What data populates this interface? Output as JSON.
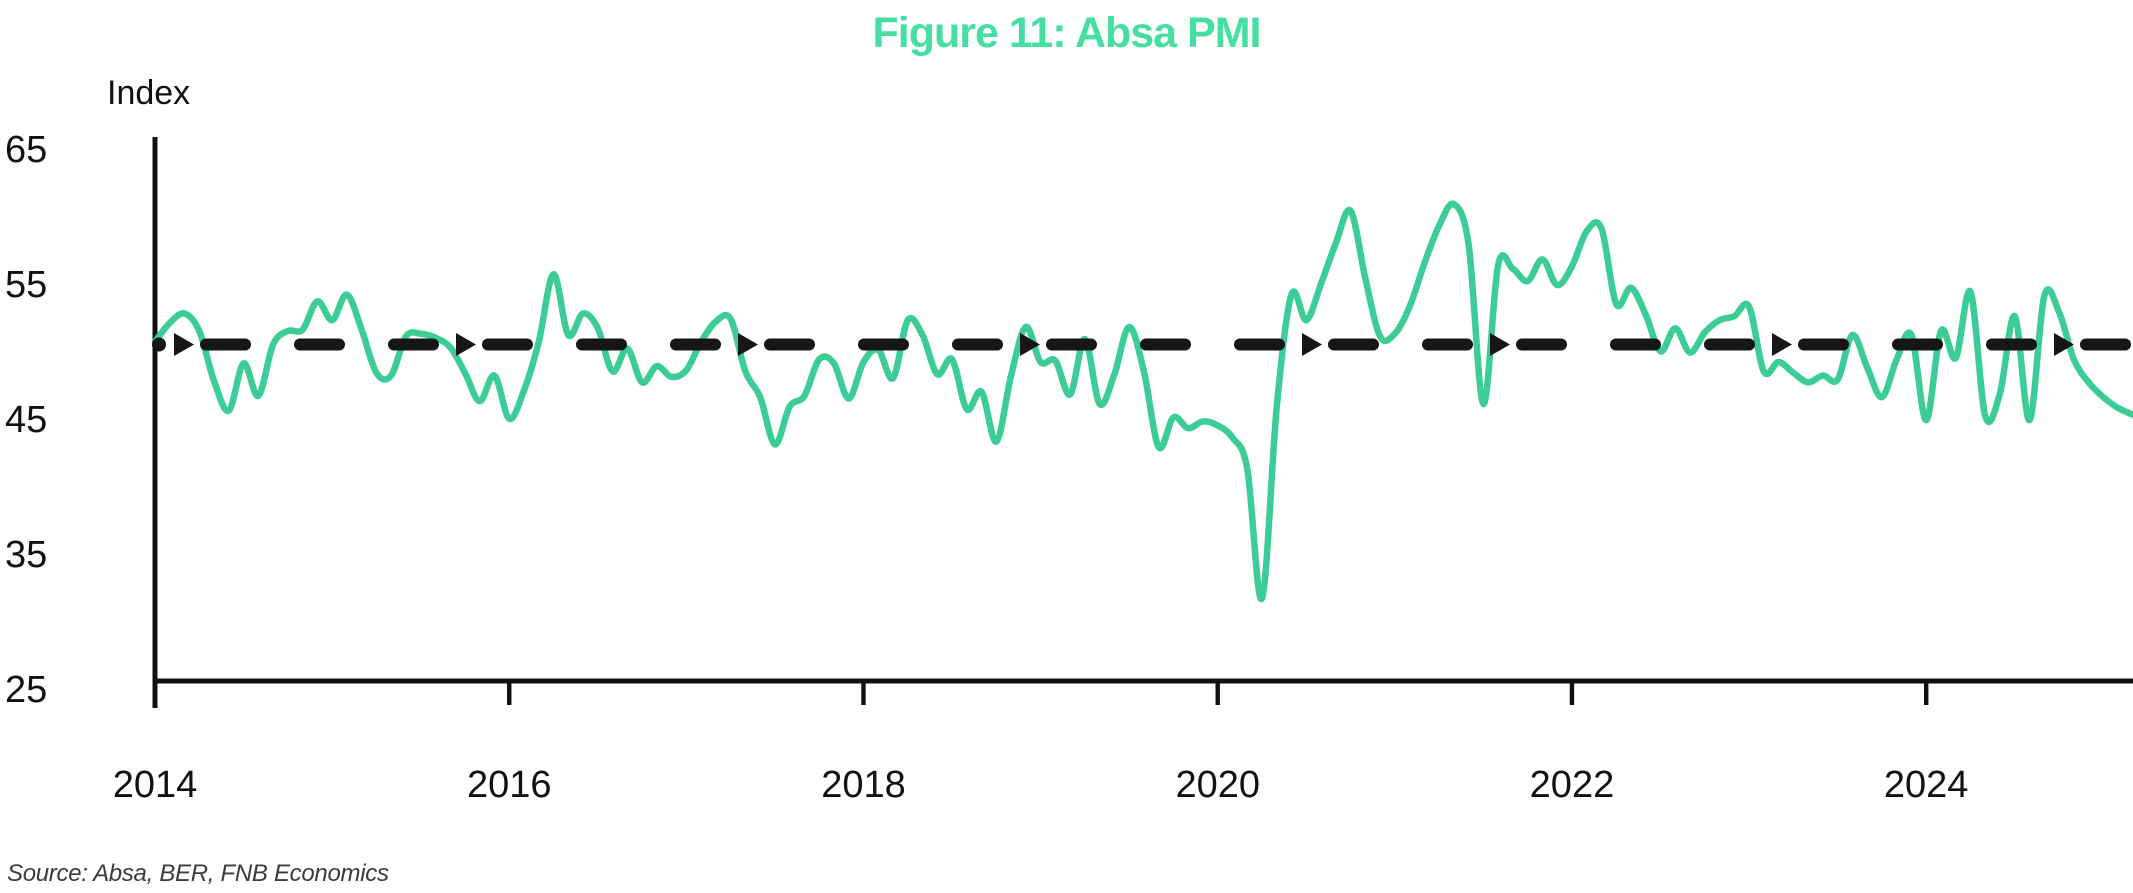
{
  "title": "Figure 11: Absa PMI",
  "y_axis_label": "Index",
  "source_note": "Source: Absa, BER, FNB Economics",
  "colors": {
    "title_green": "#45DFA3",
    "line_green": "#3CCD96",
    "axis_black": "#111111",
    "dash_black": "#161616",
    "source_gray": "#3b3b3b"
  },
  "chart_data": {
    "type": "line",
    "title": "Figure 11: Absa PMI",
    "xlabel": "",
    "ylabel": "Index",
    "ylim": [
      25,
      65.5
    ],
    "yticks": [
      65,
      55,
      45,
      35,
      25
    ],
    "xticks": [
      2014,
      2016,
      2018,
      2020,
      2022,
      2024
    ],
    "grid": false,
    "legend": false,
    "reference_line": {
      "name": "PMI neutral level",
      "value": 50,
      "style": "thick black dashes with right-pointing arrowheads"
    },
    "series": [
      {
        "name": "Absa PMI",
        "frequency": "monthly",
        "start": "2014-01",
        "end": "2025-03",
        "values": [
          50.2,
          51.6,
          52.3,
          51.0,
          47.3,
          45.1,
          48.6,
          46.2,
          50.0,
          51.0,
          51.1,
          53.2,
          51.8,
          53.7,
          51.1,
          47.9,
          47.7,
          50.6,
          50.8,
          50.5,
          49.8,
          47.9,
          45.8,
          47.7,
          44.5,
          46.6,
          50.2,
          55.2,
          50.7,
          52.3,
          51.2,
          48.0,
          49.7,
          47.2,
          48.4,
          47.6,
          48.1,
          50.2,
          51.7,
          51.9,
          48.0,
          46.1,
          42.6,
          45.4,
          46.2,
          48.9,
          48.6,
          46.0,
          48.7,
          49.6,
          47.5,
          51.8,
          50.7,
          47.8,
          48.9,
          45.2,
          46.5,
          42.8,
          47.7,
          51.3,
          48.7,
          48.8,
          46.3,
          50.4,
          45.6,
          47.8,
          51.3,
          48.0,
          42.4,
          44.6,
          43.8,
          44.3,
          44.0,
          43.1,
          40.8,
          31.2,
          45.4,
          53.7,
          51.8,
          54.5,
          57.5,
          59.9,
          54.9,
          50.6,
          50.8,
          52.8,
          56.0,
          58.8,
          60.4,
          57.4,
          45.6,
          55.9,
          55.6,
          54.7,
          56.3,
          54.4,
          55.8,
          58.4,
          58.6,
          53.0,
          54.2,
          52.2,
          49.5,
          51.2,
          49.4,
          50.9,
          51.8,
          52.1,
          52.8,
          48.0,
          48.7,
          47.9,
          47.2,
          47.7,
          47.4,
          50.7,
          48.3,
          46.1,
          48.9,
          50.7,
          44.4,
          51.0,
          49.0,
          53.9,
          44.7,
          46.4,
          52.1,
          44.4,
          53.6,
          52.4,
          48.9,
          47.2,
          46.1,
          45.3,
          44.8
        ]
      }
    ]
  }
}
